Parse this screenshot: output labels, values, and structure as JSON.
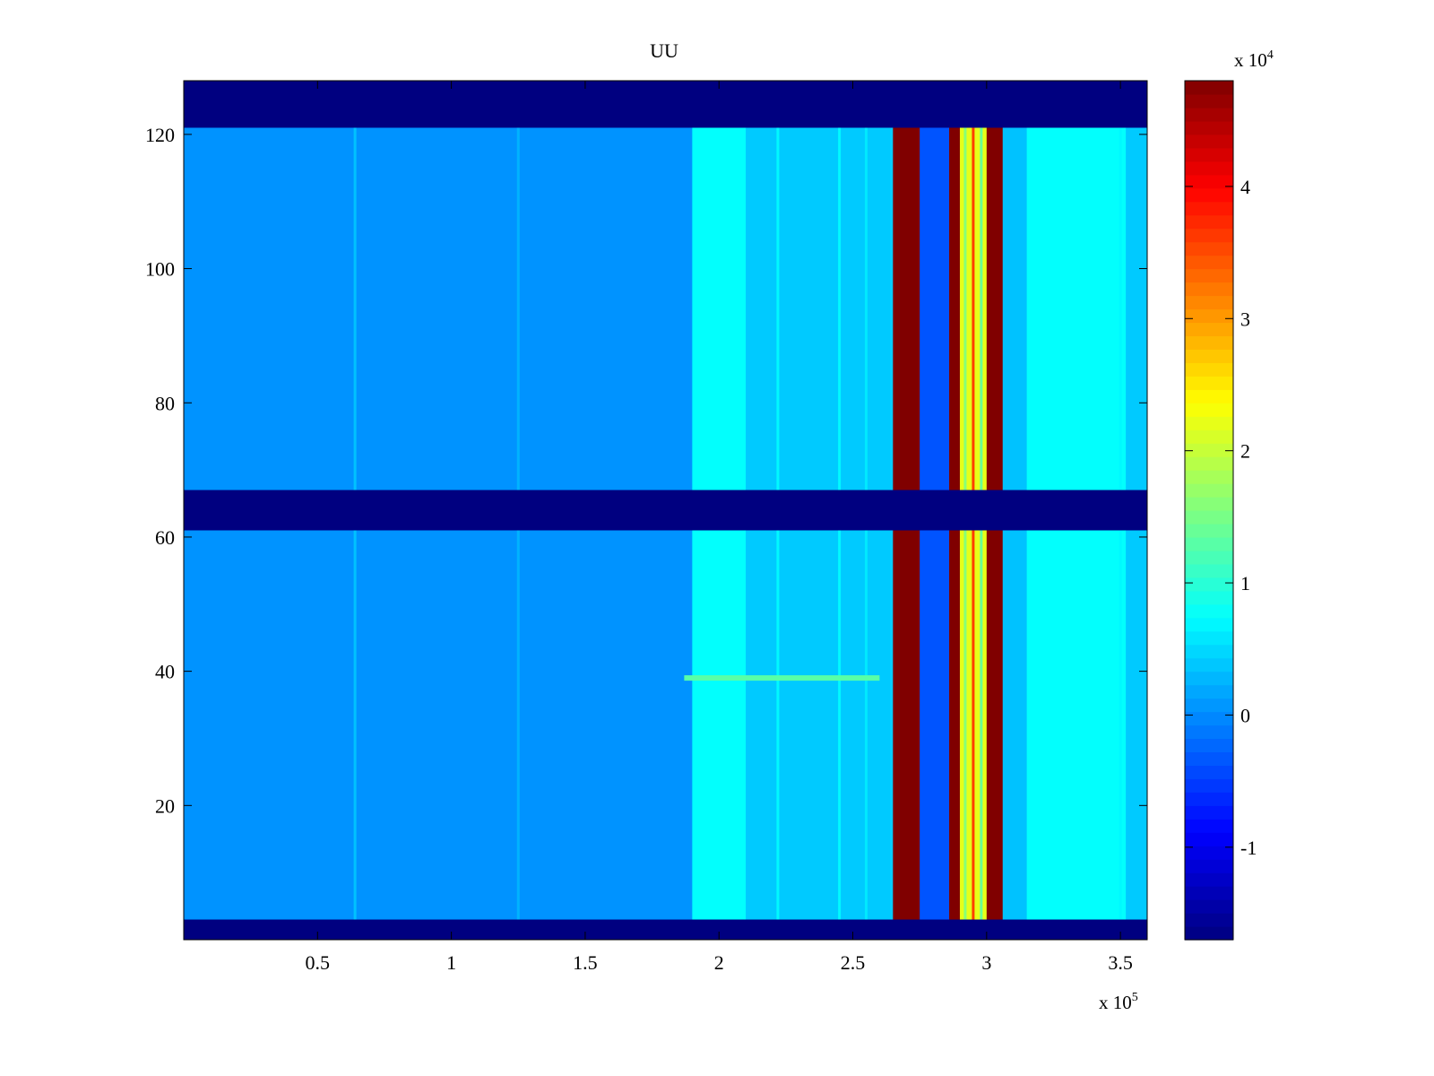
{
  "chart_data": {
    "type": "heatmap",
    "title": "UU",
    "xlabel": "",
    "ylabel": "",
    "x_exponent_label": "x 10",
    "x_exponent_power": "5",
    "xlim": [
      0,
      3.6
    ],
    "ylim": [
      0,
      128
    ],
    "x_ticks": [
      0.5,
      1,
      1.5,
      2,
      2.5,
      3,
      3.5
    ],
    "x_tick_labels": [
      "0.5",
      "1",
      "1.5",
      "2",
      "2.5",
      "3",
      "3.5"
    ],
    "y_ticks": [
      20,
      40,
      60,
      80,
      100,
      120
    ],
    "y_tick_labels": [
      "20",
      "40",
      "60",
      "80",
      "100",
      "120"
    ],
    "colormap": "jet",
    "colorbar": {
      "exponent_label": "x 10",
      "exponent_power": "4",
      "clim": [
        -1.7,
        4.8
      ],
      "ticks": [
        -1,
        0,
        1,
        2,
        3,
        4
      ],
      "tick_labels": [
        "-1",
        "0",
        "1",
        "2",
        "3",
        "4"
      ]
    },
    "background_value": 0.05,
    "empty_rows": [
      [
        0,
        3
      ],
      [
        61,
        67
      ],
      [
        121,
        128
      ]
    ],
    "empty_value": -1.7,
    "columns": [
      {
        "x0": 0.0,
        "x1": 1.9,
        "value": 0.05
      },
      {
        "x0": 1.9,
        "x1": 2.1,
        "value": 0.75
      },
      {
        "x0": 2.1,
        "x1": 2.65,
        "value": 0.4
      },
      {
        "x0": 2.65,
        "x1": 2.75,
        "value": 4.8
      },
      {
        "x0": 2.75,
        "x1": 2.86,
        "value": -0.35
      },
      {
        "x0": 2.86,
        "x1": 2.9,
        "value": 4.8
      },
      {
        "x0": 2.9,
        "x1": 3.0,
        "value": 2.2
      },
      {
        "x0": 3.0,
        "x1": 3.06,
        "value": 4.8
      },
      {
        "x0": 3.06,
        "x1": 3.15,
        "value": 0.35
      },
      {
        "x0": 3.15,
        "x1": 3.52,
        "value": 0.75
      },
      {
        "x0": 3.52,
        "x1": 3.6,
        "value": 0.4
      }
    ],
    "streaks": [
      {
        "x": 0.64,
        "value": 0.35
      },
      {
        "x": 1.25,
        "value": 0.25
      },
      {
        "x": 2.22,
        "value": 0.7
      },
      {
        "x": 2.45,
        "value": 0.7
      },
      {
        "x": 2.55,
        "value": 0.6
      },
      {
        "x": 2.92,
        "value": 1.6
      },
      {
        "x": 2.95,
        "value": 3.6
      },
      {
        "x": 2.98,
        "value": 1.4
      },
      {
        "x": 3.5,
        "value": 0.7
      }
    ],
    "row_streaks": [
      {
        "y": 39,
        "x0": 1.87,
        "x1": 2.6,
        "value": 1.3
      }
    ]
  }
}
